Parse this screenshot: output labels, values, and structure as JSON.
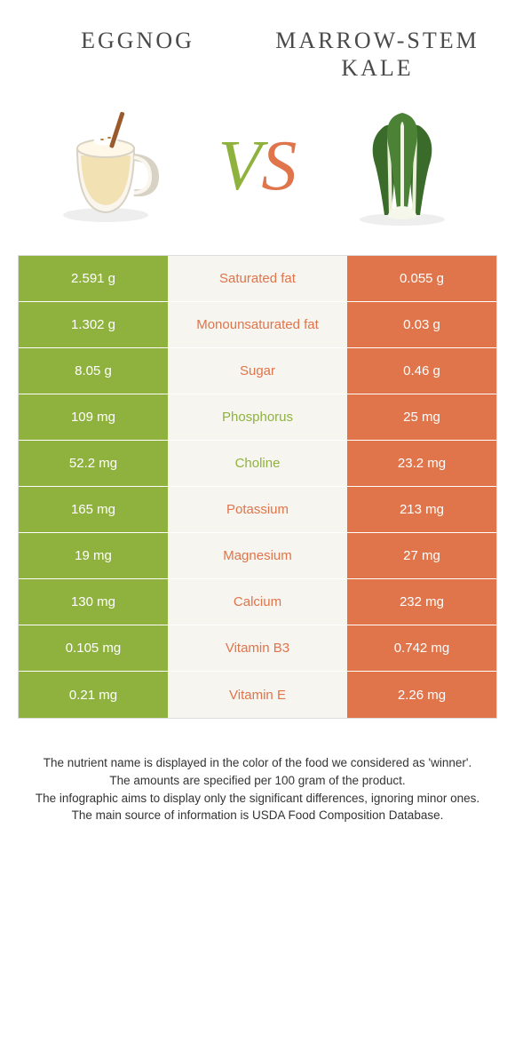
{
  "titles": {
    "left": "Eggnog",
    "right": "Marrow-stem Kale"
  },
  "vs": {
    "v": "V",
    "s": "S"
  },
  "colors": {
    "green": "#8fb23f",
    "orange": "#e0744a",
    "midbg": "#f7f5f0"
  },
  "rows": [
    {
      "left": "2.591 g",
      "label": "Saturated fat",
      "right": "0.055 g",
      "winner": "orange"
    },
    {
      "left": "1.302 g",
      "label": "Monounsaturated fat",
      "right": "0.03 g",
      "winner": "orange"
    },
    {
      "left": "8.05 g",
      "label": "Sugar",
      "right": "0.46 g",
      "winner": "orange"
    },
    {
      "left": "109 mg",
      "label": "Phosphorus",
      "right": "25 mg",
      "winner": "green"
    },
    {
      "left": "52.2 mg",
      "label": "Choline",
      "right": "23.2 mg",
      "winner": "green"
    },
    {
      "left": "165 mg",
      "label": "Potassium",
      "right": "213 mg",
      "winner": "orange"
    },
    {
      "left": "19 mg",
      "label": "Magnesium",
      "right": "27 mg",
      "winner": "orange"
    },
    {
      "left": "130 mg",
      "label": "Calcium",
      "right": "232 mg",
      "winner": "orange"
    },
    {
      "left": "0.105 mg",
      "label": "Vitamin B3",
      "right": "0.742 mg",
      "winner": "orange"
    },
    {
      "left": "0.21 mg",
      "label": "Vitamin E",
      "right": "2.26 mg",
      "winner": "orange"
    }
  ],
  "footer": {
    "l1": "The nutrient name is displayed in the color of the food we considered as 'winner'.",
    "l2": "The amounts are specified per 100 gram of the product.",
    "l3": "The infographic aims to display only the significant differences, ignoring minor ones.",
    "l4": "The main source of information is USDA Food Composition Database."
  }
}
